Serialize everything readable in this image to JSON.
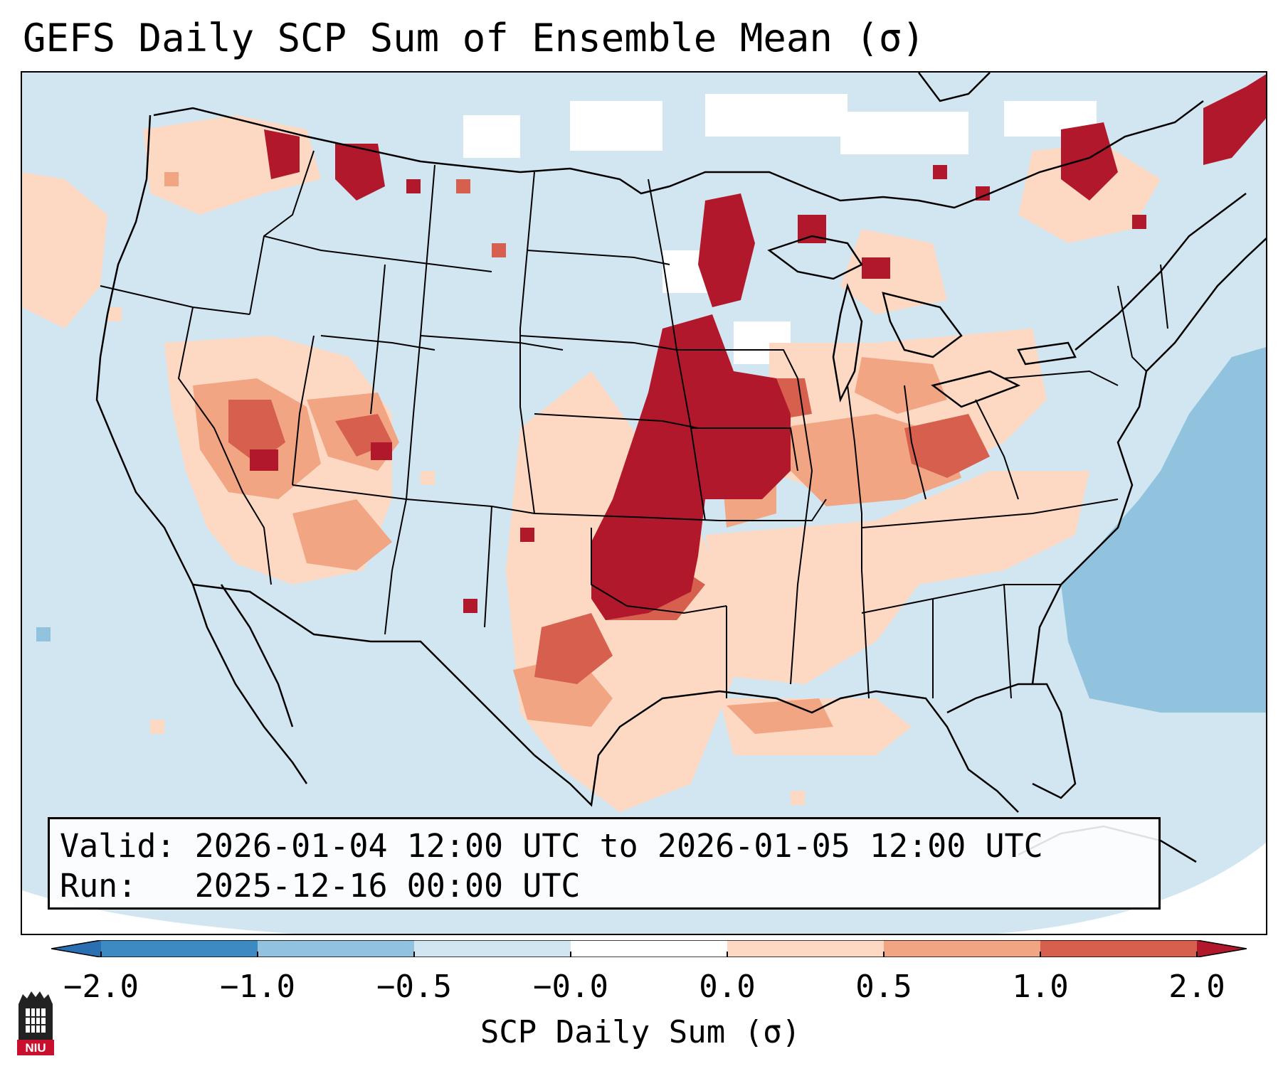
{
  "title": "GEFS Daily SCP Sum of Ensemble Mean (σ)",
  "info": {
    "valid_label": "Valid:",
    "valid_value": "2026-01-04 12:00 UTC to 2026-01-05 12:00 UTC",
    "run_label": "Run:",
    "run_value": "2025-12-16 00:00 UTC"
  },
  "colorbar": {
    "label": "SCP Daily Sum (σ)",
    "ticks": [
      "−2.0",
      "−1.0",
      "−0.5",
      "−0.0",
      "0.0",
      "0.5",
      "1.0",
      "2.0"
    ],
    "bins": [
      {
        "range": "< -2.0",
        "color": "#2b6fb3"
      },
      {
        "range": "-2.0 to -1.0",
        "color": "#3d8ac2"
      },
      {
        "range": "-1.0 to -0.5",
        "color": "#92c3de"
      },
      {
        "range": "-0.5 to -0.0",
        "color": "#d2e6f1"
      },
      {
        "range": "-0.0 to 0.0",
        "color": "#ffffff"
      },
      {
        "range": "0.0 to 0.5",
        "color": "#fdd9c4"
      },
      {
        "range": "0.5 to 1.0",
        "color": "#f2a583"
      },
      {
        "range": "1.0 to 2.0",
        "color": "#d6604d"
      },
      {
        "range": "> 2.0",
        "color": "#b2182b"
      }
    ]
  },
  "logo": {
    "text": "NIU",
    "icon": "niu-logo-icon"
  },
  "map": {
    "projection": "Lambert Conformal",
    "region": "CONUS",
    "features": [
      "coastlines",
      "state-borders",
      "country-borders"
    ],
    "highlight_regions": [
      {
        "name": "Southern Plains",
        "level": "> 2.0"
      },
      {
        "name": "Upper Midwest",
        "level": "> 2.0"
      },
      {
        "name": "Ohio Valley",
        "level": "1.0 to 2.0"
      },
      {
        "name": "Intermountain West",
        "level": "0.5 to 1.0"
      },
      {
        "name": "Gulf Coast",
        "level": "0.0 to 0.5"
      },
      {
        "name": "Western Atlantic",
        "level": "-1.0 to -0.5"
      }
    ]
  }
}
